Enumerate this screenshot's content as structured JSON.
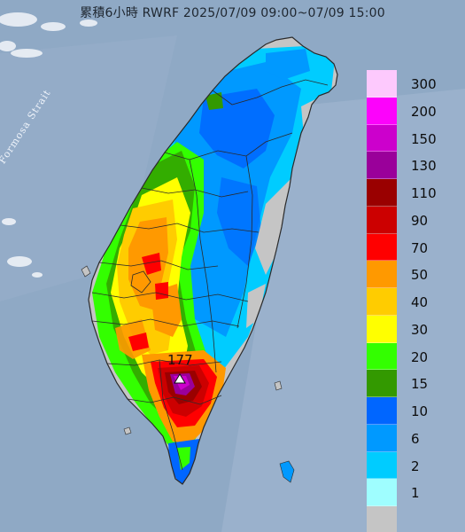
{
  "title": "累積6小時 RWRF 2025/07/09 09:00~07/09 15:00",
  "strait_label": "Formosa Strait",
  "max_value_label": "177",
  "colors": {
    "sea": "#8fa9c5",
    "no_rain": "#c5c5c5",
    "border": "#2a2a2a"
  },
  "legend": {
    "name": "rainfall-scale",
    "bins": [
      {
        "label": "300",
        "color": "#fdc9fd"
      },
      {
        "label": "200",
        "color": "#fc03fb"
      },
      {
        "label": "150",
        "color": "#cc00cc"
      },
      {
        "label": "130",
        "color": "#9a009a"
      },
      {
        "label": "110",
        "color": "#9a0000"
      },
      {
        "label": "90",
        "color": "#cc0000"
      },
      {
        "label": "70",
        "color": "#ff0000"
      },
      {
        "label": "50",
        "color": "#ff9900"
      },
      {
        "label": "40",
        "color": "#ffcc00"
      },
      {
        "label": "30",
        "color": "#ffff00"
      },
      {
        "label": "20",
        "color": "#33ff00"
      },
      {
        "label": "15",
        "color": "#339900"
      },
      {
        "label": "10",
        "color": "#0066ff"
      },
      {
        "label": "6",
        "color": "#0099ff"
      },
      {
        "label": "2",
        "color": "#00ccff"
      },
      {
        "label": "1",
        "color": "#9ffeff"
      },
      {
        "label": "",
        "color": "#c5c5c5"
      }
    ]
  },
  "max_marker": {
    "icon": "triangle-marker-icon",
    "value": 177
  }
}
